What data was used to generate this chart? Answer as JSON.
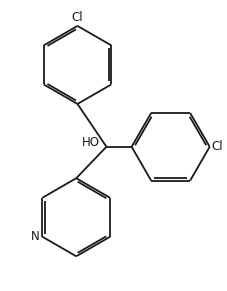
{
  "bg_color": "#ffffff",
  "line_color": "#1a1a1a",
  "line_width": 1.3,
  "dbo": 0.09,
  "font_size": 8.5,
  "figsize": [
    2.28,
    2.91
  ],
  "dpi": 100,
  "xlim": [
    0,
    9
  ],
  "ylim": [
    0,
    11.5
  ]
}
